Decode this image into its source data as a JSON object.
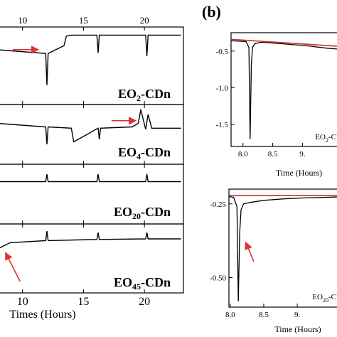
{
  "panel_label": "(b)",
  "chart_data": [
    {
      "type": "line",
      "panel": "a",
      "xlabel": "Times (Hours)",
      "xlim": [
        7.8,
        23.2
      ],
      "xticks": [
        10,
        15,
        20
      ],
      "xtick_labels": [
        "10",
        "15",
        "20"
      ],
      "series": [
        {
          "name": "EO2-CDn",
          "label_main": "EO",
          "label_sub": "2",
          "label_tail": "-CDn",
          "x": [
            7.8,
            11.9,
            12.0,
            12.1,
            13.4,
            13.6,
            14.0,
            16.1,
            16.2,
            16.3,
            20.1,
            20.2,
            20.3,
            23.0
          ],
          "y": [
            0.5,
            0.38,
            -0.6,
            0.38,
            0.62,
            0.92,
            0.95,
            0.95,
            0.4,
            0.95,
            0.95,
            0.3,
            0.95,
            0.95
          ]
        },
        {
          "name": "EO4-CDn",
          "label_main": "EO",
          "label_sub": "4",
          "label_tail": "-CDn",
          "x": [
            7.8,
            11.9,
            12.0,
            12.1,
            14.0,
            14.2,
            16.2,
            16.3,
            16.4,
            19.0,
            19.5,
            19.7,
            20.1,
            20.3,
            20.6,
            23.0
          ],
          "y": [
            0.45,
            0.3,
            -0.4,
            0.3,
            0.25,
            -0.3,
            0.25,
            -0.2,
            0.25,
            0.3,
            0.45,
            1.0,
            0.2,
            0.8,
            0.25,
            0.25
          ]
        },
        {
          "name": "EO20-CDn",
          "label_main": "EO",
          "label_sub": "20",
          "label_tail": "-CDn",
          "x": [
            7.8,
            11.9,
            12.0,
            12.1,
            16.1,
            16.2,
            16.3,
            20.1,
            20.2,
            20.3,
            23.0
          ],
          "y": [
            0.5,
            0.5,
            0.8,
            0.5,
            0.5,
            0.8,
            0.5,
            0.5,
            0.8,
            0.5,
            0.5
          ]
        },
        {
          "name": "EO45-CDn",
          "label_main": "EO",
          "label_sub": "45",
          "label_tail": "-CDn",
          "x": [
            7.8,
            9.0,
            11.9,
            12.0,
            12.1,
            16.1,
            16.2,
            16.3,
            20.1,
            20.2,
            20.3,
            23.0
          ],
          "y": [
            0.3,
            0.55,
            0.62,
            0.95,
            0.62,
            0.66,
            0.9,
            0.66,
            0.68,
            0.9,
            0.68,
            0.68
          ]
        }
      ],
      "arrows": [
        {
          "series": "EO2-CDn",
          "x0": 9.2,
          "y0": 0.5,
          "x1": 11.3,
          "y1": 0.5
        },
        {
          "series": "EO4-CDn",
          "x0": 17.3,
          "y0": 0.55,
          "x1": 19.3,
          "y1": 0.55
        },
        {
          "series": "EO45-CDn",
          "x0": 9.8,
          "y0": -0.8,
          "x1": 8.6,
          "y1": 0.2
        }
      ]
    },
    {
      "type": "line",
      "panel": "b-top",
      "xlabel": "Time (Hours)",
      "xlim": [
        7.8,
        9.7
      ],
      "ylim": [
        -1.8,
        -0.25
      ],
      "xticks": [
        8.0,
        8.5,
        9.0
      ],
      "xtick_labels": [
        "8.0",
        "8.5",
        "9."
      ],
      "yticks": [
        -0.5,
        -1.0,
        -1.5
      ],
      "ytick_labels": [
        "-0.5",
        "-1.0",
        "-1.5"
      ],
      "inset_label_main": "EO",
      "inset_label_sub": "2",
      "inset_label_tail": "-Cl",
      "series": [
        {
          "name": "data",
          "x": [
            7.8,
            8.05,
            8.1,
            8.12,
            8.14,
            8.16,
            8.2,
            8.3,
            8.5,
            8.8,
            9.1,
            9.4,
            9.7
          ],
          "y": [
            -0.36,
            -0.37,
            -0.45,
            -1.7,
            -0.7,
            -0.45,
            -0.4,
            -0.38,
            -0.39,
            -0.41,
            -0.43,
            -0.46,
            -0.48
          ]
        },
        {
          "name": "baseline",
          "color": "#d42a2a",
          "x": [
            7.8,
            9.7
          ],
          "y": [
            -0.34,
            -0.44
          ]
        }
      ]
    },
    {
      "type": "line",
      "panel": "b-bottom",
      "xlabel": "Time (Hours)",
      "xlim": [
        7.98,
        9.7
      ],
      "ylim": [
        -0.6,
        -0.2
      ],
      "xticks": [
        8.0,
        8.5,
        9.0
      ],
      "xtick_labels": [
        "8.0",
        "8.5",
        "9."
      ],
      "yticks": [
        -0.25,
        -0.5
      ],
      "ytick_labels": [
        "-0.25",
        "-0.50"
      ],
      "inset_label_main": "EO",
      "inset_label_sub": "20",
      "inset_label_tail": "-Cl",
      "series": [
        {
          "name": "data",
          "x": [
            7.98,
            8.05,
            8.1,
            8.12,
            8.14,
            8.16,
            8.2,
            8.3,
            8.5,
            8.8,
            9.1,
            9.4,
            9.7
          ],
          "y": [
            -0.225,
            -0.228,
            -0.26,
            -0.58,
            -0.35,
            -0.27,
            -0.25,
            -0.245,
            -0.238,
            -0.233,
            -0.23,
            -0.228,
            -0.226
          ]
        },
        {
          "name": "baseline",
          "color": "#d42a2a",
          "x": [
            7.98,
            9.7
          ],
          "y": [
            -0.222,
            -0.222
          ]
        }
      ],
      "arrows": [
        {
          "x0": 8.35,
          "y0": -0.445,
          "x1": 8.23,
          "y1": -0.38
        }
      ]
    }
  ]
}
